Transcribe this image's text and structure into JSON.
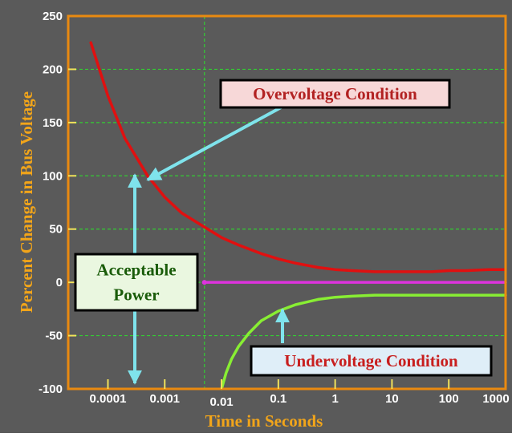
{
  "chart_data": {
    "type": "line",
    "xlabel": "Time in Seconds",
    "ylabel": "Percent Change in Bus Voltage",
    "x_scale": "log",
    "xlim": [
      2e-05,
      1000
    ],
    "ylim": [
      -100,
      250
    ],
    "x_ticks": [
      {
        "value": 0.0001,
        "label": "0.0001"
      },
      {
        "value": 0.001,
        "label": "0.001"
      },
      {
        "value": 0.01,
        "label": "0.01"
      },
      {
        "value": 0.1,
        "label": "0.1"
      },
      {
        "value": 1,
        "label": "1"
      },
      {
        "value": 10,
        "label": "10"
      },
      {
        "value": 100,
        "label": "100"
      },
      {
        "value": 1000,
        "label": "1000"
      }
    ],
    "y_ticks": [
      {
        "value": 250,
        "label": "250"
      },
      {
        "value": 200,
        "label": "200"
      },
      {
        "value": 150,
        "label": "150"
      },
      {
        "value": 100,
        "label": "100"
      },
      {
        "value": 50,
        "label": "50"
      },
      {
        "value": 0,
        "label": "0"
      },
      {
        "value": -50,
        "label": "-50"
      },
      {
        "value": -100,
        "label": "-100"
      }
    ],
    "grid": true,
    "series": [
      {
        "key": "overvoltage",
        "color": "#e01010",
        "x": [
          5e-05,
          0.0001,
          0.0002,
          0.0005,
          0.001,
          0.002,
          0.005,
          0.01,
          0.02,
          0.05,
          0.1,
          0.2,
          0.5,
          1,
          2,
          5,
          10,
          20,
          50,
          100,
          200,
          500,
          1000
        ],
        "y": [
          225,
          175,
          135,
          100,
          80,
          65,
          52,
          42,
          35,
          27,
          22,
          18,
          14,
          12,
          11,
          10,
          10,
          10,
          10,
          11,
          11,
          12,
          12
        ]
      },
      {
        "key": "nominal",
        "color": "#dd33dd",
        "x": [
          0.005,
          1000
        ],
        "y": [
          0,
          0
        ]
      },
      {
        "key": "undervoltage",
        "color": "#88ee33",
        "x": [
          0.01,
          0.012,
          0.015,
          0.02,
          0.03,
          0.05,
          0.1,
          0.2,
          0.5,
          1,
          2,
          5,
          10,
          20,
          50,
          100,
          200,
          500,
          1000
        ],
        "y": [
          -100,
          -85,
          -72,
          -60,
          -48,
          -36,
          -27,
          -21,
          -16,
          -14,
          -13,
          -12,
          -12,
          -12,
          -12,
          -12,
          -12,
          -12,
          -12
        ]
      }
    ],
    "annotations": [
      {
        "key": "over",
        "text": "Overvoltage Condition",
        "bg": "#f7d8d8",
        "color": "#b22222"
      },
      {
        "key": "accept",
        "lines": [
          "Acceptable",
          "Power"
        ],
        "bg": "#eaf7e0",
        "color": "#1a5c0a"
      },
      {
        "key": "under",
        "text": "Undervoltage Condition",
        "bg": "#dfeef8",
        "color": "#c81e1e"
      }
    ]
  },
  "colors": {
    "background": "#5a5a5a",
    "plot_border": "#e98a10",
    "grid": "#33cc33",
    "arrow": "#7fe3ec",
    "tick_mark": "#f2e25a"
  }
}
